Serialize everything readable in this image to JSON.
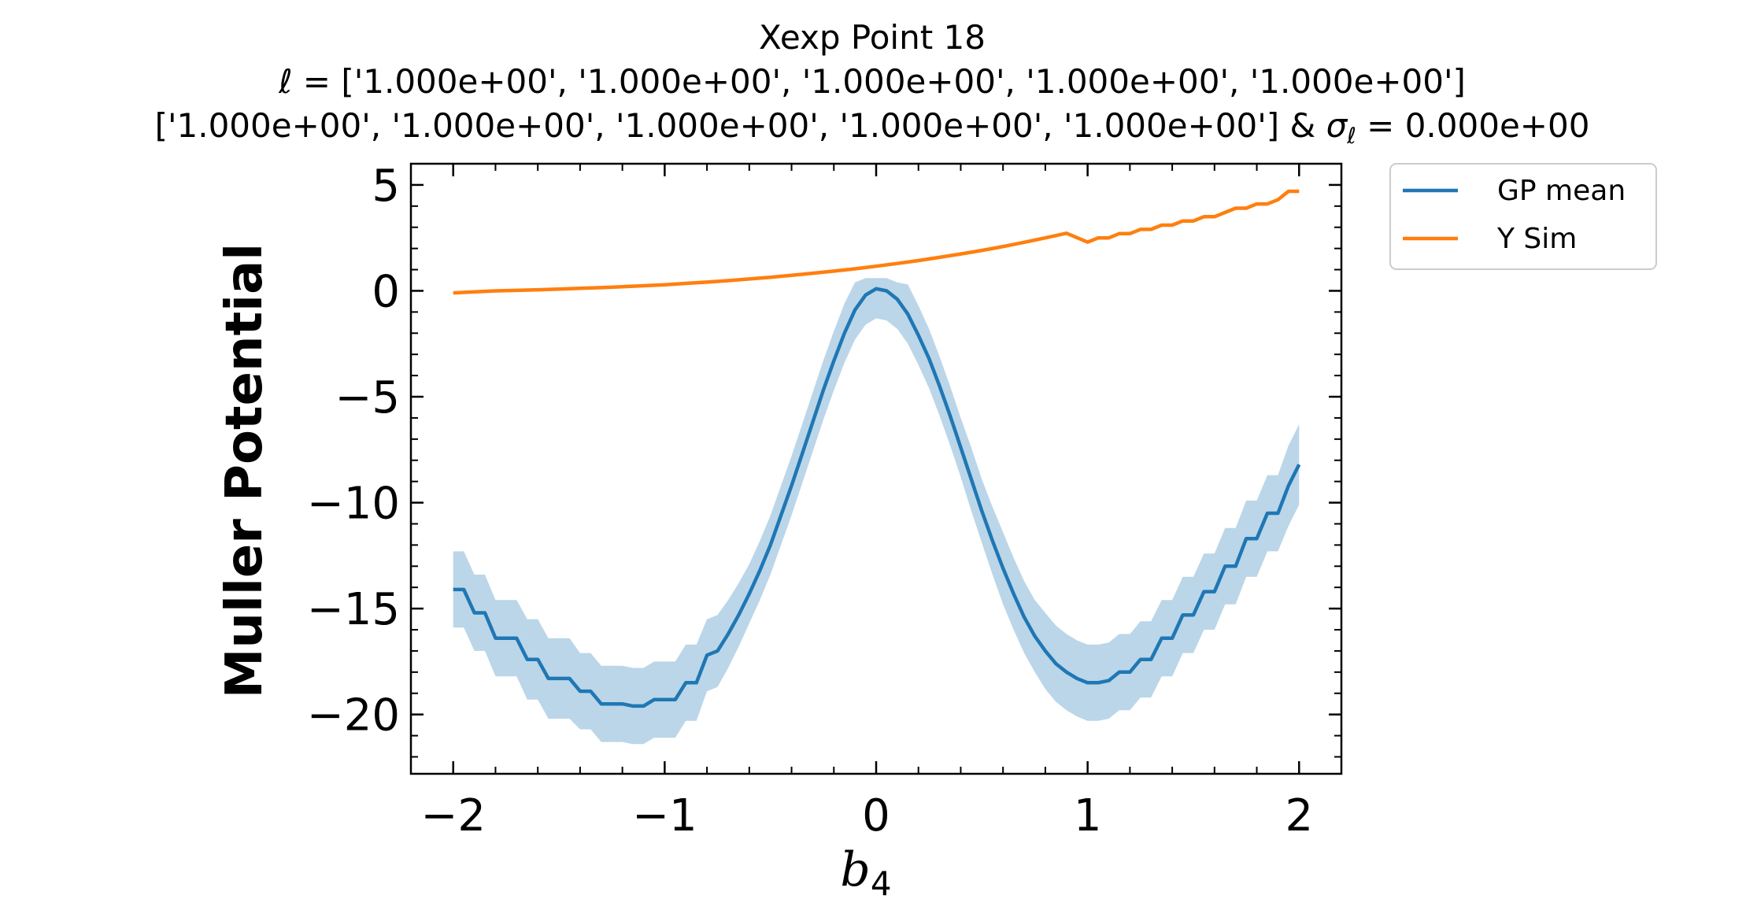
{
  "chart_data": {
    "type": "line",
    "title": {
      "line1": "Xexp Point 18",
      "line2_symbol": "ℓ",
      "line2_rest": " = ['1.000e+00', '1.000e+00', '1.000e+00', '1.000e+00', '1.000e+00']",
      "line3_prefix": "['1.000e+00', '1.000e+00', '1.000e+00', '1.000e+00', '1.000e+00'] & ",
      "line3_sigma": "σ",
      "line3_sigma_sub": "ℓ",
      "line3_suffix": " = 0.000e+00"
    },
    "xlabel": {
      "main": "b",
      "sub": "4"
    },
    "ylabel": "Muller Potential",
    "xlim": [
      -2.2,
      2.2
    ],
    "ylim": [
      -22.8,
      6.0
    ],
    "xticks": [
      -2,
      -1,
      0,
      1,
      2
    ],
    "xtick_labels": [
      "−2",
      "−1",
      "0",
      "1",
      "2"
    ],
    "yticks": [
      5,
      0,
      -5,
      -10,
      -15,
      -20
    ],
    "ytick_labels": [
      "5",
      "0",
      "−5",
      "−10",
      "−15",
      "−20"
    ],
    "legend_position": "outside-upper-right",
    "series": [
      {
        "name": "GP mean",
        "color": "#1f77b4",
        "band_color": "#1f77b4",
        "band_opacity": 0.3,
        "x": [
          -2.0,
          -1.95,
          -1.9,
          -1.85,
          -1.8,
          -1.75,
          -1.7,
          -1.65,
          -1.6,
          -1.55,
          -1.5,
          -1.45,
          -1.4,
          -1.35,
          -1.3,
          -1.25,
          -1.2,
          -1.15,
          -1.1,
          -1.05,
          -1.0,
          -0.95,
          -0.9,
          -0.85,
          -0.8,
          -0.75,
          -0.7,
          -0.65,
          -0.6,
          -0.55,
          -0.5,
          -0.45,
          -0.4,
          -0.35,
          -0.3,
          -0.25,
          -0.2,
          -0.15,
          -0.1,
          -0.05,
          0.0,
          0.05,
          0.1,
          0.15,
          0.2,
          0.25,
          0.3,
          0.35,
          0.4,
          0.45,
          0.5,
          0.55,
          0.6,
          0.65,
          0.7,
          0.75,
          0.8,
          0.85,
          0.9,
          0.95,
          1.0,
          1.05,
          1.1,
          1.15,
          1.2,
          1.25,
          1.3,
          1.35,
          1.4,
          1.45,
          1.5,
          1.55,
          1.6,
          1.65,
          1.7,
          1.75,
          1.8,
          1.85,
          1.9,
          1.95,
          2.0
        ],
        "y": [
          -14.1,
          -14.1,
          -15.2,
          -15.2,
          -16.4,
          -16.4,
          -16.4,
          -17.4,
          -17.4,
          -18.3,
          -18.3,
          -18.3,
          -18.9,
          -18.9,
          -19.5,
          -19.5,
          -19.5,
          -19.6,
          -19.6,
          -19.3,
          -19.3,
          -19.3,
          -18.5,
          -18.5,
          -17.2,
          -17.0,
          -16.2,
          -15.3,
          -14.3,
          -13.2,
          -12.0,
          -10.6,
          -9.2,
          -7.7,
          -6.2,
          -4.7,
          -3.3,
          -2.0,
          -0.9,
          -0.2,
          0.1,
          0.0,
          -0.4,
          -1.1,
          -2.1,
          -3.2,
          -4.5,
          -5.9,
          -7.4,
          -8.9,
          -10.4,
          -11.8,
          -13.1,
          -14.3,
          -15.4,
          -16.3,
          -17.0,
          -17.6,
          -18.0,
          -18.3,
          -18.5,
          -18.5,
          -18.4,
          -18.0,
          -18.0,
          -17.4,
          -17.4,
          -16.4,
          -16.4,
          -15.3,
          -15.3,
          -14.2,
          -14.2,
          -13.0,
          -13.0,
          -11.7,
          -11.7,
          -10.5,
          -10.5,
          -9.2,
          -8.2
        ],
        "y_lower": [
          -15.9,
          -15.9,
          -17.0,
          -17.0,
          -18.2,
          -18.2,
          -18.2,
          -19.3,
          -19.3,
          -20.2,
          -20.2,
          -20.2,
          -20.7,
          -20.7,
          -21.3,
          -21.3,
          -21.3,
          -21.4,
          -21.4,
          -21.1,
          -21.1,
          -21.1,
          -20.3,
          -20.3,
          -18.9,
          -18.7,
          -17.8,
          -16.8,
          -15.7,
          -14.6,
          -13.4,
          -12.0,
          -10.6,
          -9.1,
          -7.6,
          -6.1,
          -4.7,
          -3.4,
          -2.3,
          -1.6,
          -1.3,
          -1.4,
          -1.8,
          -2.5,
          -3.5,
          -4.6,
          -5.9,
          -7.3,
          -8.8,
          -10.4,
          -11.9,
          -13.4,
          -14.8,
          -16.0,
          -17.1,
          -18.0,
          -18.8,
          -19.4,
          -19.8,
          -20.1,
          -20.3,
          -20.3,
          -20.2,
          -19.8,
          -19.8,
          -19.2,
          -19.2,
          -18.2,
          -18.2,
          -17.1,
          -17.1,
          -16.0,
          -16.0,
          -14.8,
          -14.8,
          -13.5,
          -13.5,
          -12.3,
          -12.3,
          -11.1,
          -10.1
        ],
        "y_upper": [
          -12.3,
          -12.3,
          -13.4,
          -13.4,
          -14.6,
          -14.6,
          -14.6,
          -15.5,
          -15.5,
          -16.4,
          -16.4,
          -16.4,
          -17.1,
          -17.1,
          -17.7,
          -17.7,
          -17.7,
          -17.8,
          -17.8,
          -17.5,
          -17.5,
          -17.5,
          -16.7,
          -16.7,
          -15.5,
          -15.3,
          -14.6,
          -13.8,
          -12.9,
          -11.8,
          -10.6,
          -9.2,
          -7.8,
          -6.3,
          -4.8,
          -3.3,
          -1.9,
          -0.6,
          0.4,
          0.6,
          0.6,
          0.6,
          0.4,
          0.3,
          -0.7,
          -1.8,
          -3.1,
          -4.5,
          -6.0,
          -7.4,
          -8.9,
          -10.2,
          -11.4,
          -12.6,
          -13.7,
          -14.6,
          -15.2,
          -15.8,
          -16.2,
          -16.5,
          -16.7,
          -16.7,
          -16.6,
          -16.2,
          -16.2,
          -15.6,
          -15.6,
          -14.6,
          -14.6,
          -13.5,
          -13.5,
          -12.4,
          -12.4,
          -11.2,
          -11.2,
          -9.9,
          -9.9,
          -8.7,
          -8.7,
          -7.3,
          -6.3
        ]
      },
      {
        "name": "Y Sim",
        "color": "#ff7f0e",
        "x": [
          -2.0,
          -1.9,
          -1.8,
          -1.7,
          -1.6,
          -1.5,
          -1.4,
          -1.3,
          -1.2,
          -1.1,
          -1.0,
          -0.9,
          -0.8,
          -0.7,
          -0.6,
          -0.5,
          -0.4,
          -0.3,
          -0.2,
          -0.1,
          0.0,
          0.1,
          0.2,
          0.3,
          0.4,
          0.5,
          0.6,
          0.7,
          0.8,
          0.9,
          1.0,
          1.05,
          1.1,
          1.15,
          1.2,
          1.25,
          1.3,
          1.35,
          1.4,
          1.45,
          1.5,
          1.55,
          1.6,
          1.65,
          1.7,
          1.75,
          1.8,
          1.85,
          1.9,
          1.95,
          2.0
        ],
        "y": [
          -0.1,
          -0.05,
          0.0,
          0.02,
          0.05,
          0.08,
          0.12,
          0.15,
          0.19,
          0.24,
          0.29,
          0.35,
          0.41,
          0.48,
          0.56,
          0.64,
          0.73,
          0.83,
          0.93,
          1.04,
          1.16,
          1.29,
          1.43,
          1.58,
          1.74,
          1.91,
          2.09,
          2.29,
          2.5,
          2.72,
          2.3,
          2.5,
          2.5,
          2.7,
          2.7,
          2.9,
          2.9,
          3.1,
          3.1,
          3.3,
          3.3,
          3.5,
          3.5,
          3.7,
          3.9,
          3.9,
          4.1,
          4.1,
          4.3,
          4.7,
          4.7
        ]
      }
    ]
  }
}
